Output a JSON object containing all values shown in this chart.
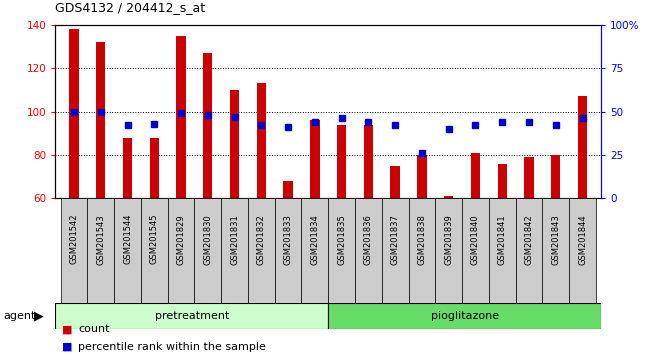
{
  "title": "GDS4132 / 204412_s_at",
  "samples": [
    "GSM201542",
    "GSM201543",
    "GSM201544",
    "GSM201545",
    "GSM201829",
    "GSM201830",
    "GSM201831",
    "GSM201832",
    "GSM201833",
    "GSM201834",
    "GSM201835",
    "GSM201836",
    "GSM201837",
    "GSM201838",
    "GSM201839",
    "GSM201840",
    "GSM201841",
    "GSM201842",
    "GSM201843",
    "GSM201844"
  ],
  "counts": [
    138,
    132,
    88,
    88,
    135,
    127,
    110,
    113,
    68,
    96,
    94,
    94,
    75,
    80,
    61,
    81,
    76,
    79,
    80,
    107
  ],
  "percentiles": [
    50,
    50,
    42,
    43,
    49,
    48,
    47,
    42,
    41,
    44,
    46,
    44,
    42,
    26,
    40,
    42,
    44,
    44,
    42,
    46
  ],
  "bar_color": "#cc0000",
  "dot_color": "#0000cc",
  "ymin": 60,
  "ymax": 140,
  "yticks": [
    60,
    80,
    100,
    120,
    140
  ],
  "y2min": 0,
  "y2max": 100,
  "y2ticks": [
    0,
    25,
    50,
    75,
    100
  ],
  "y2ticklabels": [
    "0",
    "25",
    "50",
    "75",
    "100%"
  ],
  "grid_yticks": [
    80,
    100,
    120
  ],
  "pretreat_n": 10,
  "pioglit_n": 10,
  "pretreatment_label": "pretreatment",
  "pioglitazone_label": "pioglitazone",
  "agent_label": "agent",
  "legend_count_label": "count",
  "legend_percentile_label": "percentile rank within the sample",
  "bg_color": "#ffffff",
  "pretreat_color": "#ccffcc",
  "pioglit_color": "#66dd66",
  "tick_box_color": "#cccccc",
  "bar_width": 0.35
}
